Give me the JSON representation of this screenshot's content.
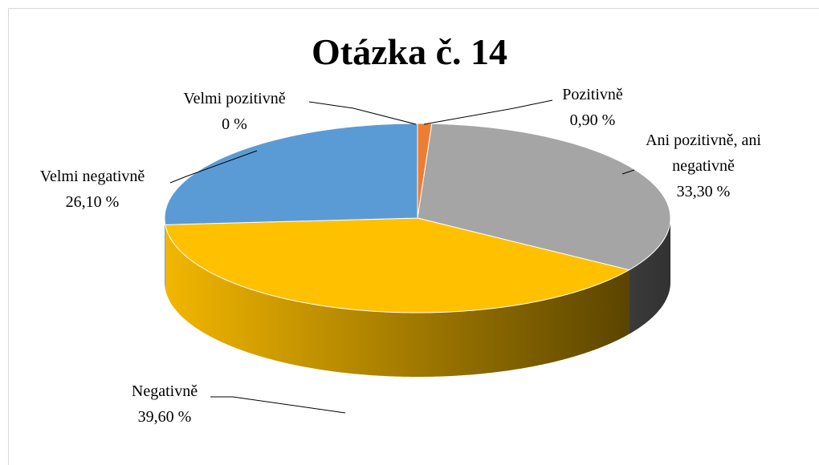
{
  "chart_data": {
    "type": "pie",
    "title": "Otázka č. 14",
    "categories": [
      "Velmi pozitivně",
      "Pozitivně",
      "Ani pozitivně, ani negativně",
      "Negativně",
      "Velmi negativně"
    ],
    "values": [
      0,
      0.9,
      33.3,
      39.6,
      26.1
    ],
    "value_labels": [
      "0 %",
      "0,90 %",
      "33,30 %",
      "39,60 %",
      "26,10 %"
    ],
    "colors": [
      "#4472c4",
      "#ed7d31",
      "#a5a5a5",
      "#ffc000",
      "#5b9bd5"
    ]
  }
}
